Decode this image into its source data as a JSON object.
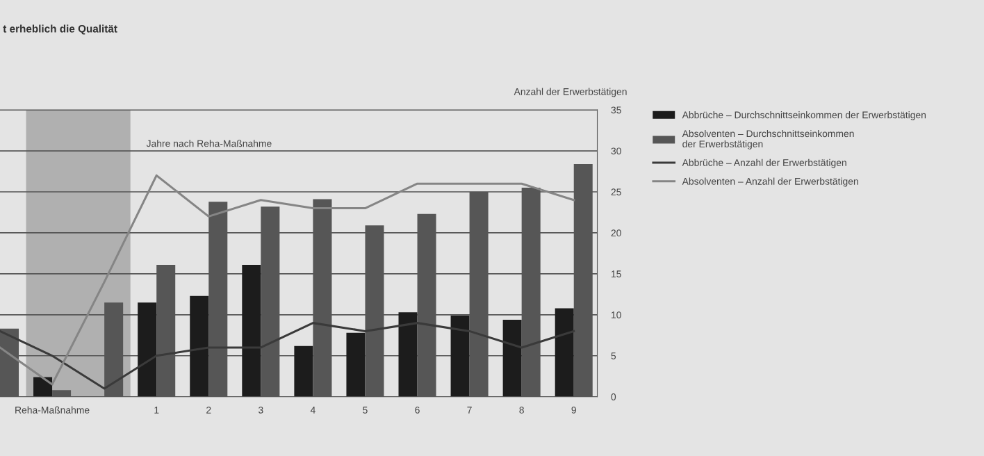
{
  "chart_data": {
    "type": "bar",
    "title": "t erheblich die Qualität",
    "ylabel": "Anzahl der Erwerbstätigen",
    "categories": [
      null,
      "Reha-Maßnahme",
      null,
      "1",
      "2",
      "3",
      "4",
      "5",
      "6",
      "7",
      "8",
      "9"
    ],
    "series": [
      {
        "name": "Abbrüche – Durchschnittseinkommen der Erwerbstätigen",
        "color": "#1c1c1c",
        "values": [
          null,
          2.4,
          null,
          11.5,
          12.3,
          16.1,
          6.2,
          7.8,
          10.3,
          9.9,
          9.4,
          10.8
        ]
      },
      {
        "name": "Absolventen – Durchschnittseinkommen der Erwerbstätigen",
        "color": "#565656",
        "values": [
          8.3,
          0.8,
          11.5,
          16.1,
          23.8,
          23.2,
          24.1,
          20.9,
          22.3,
          25.0,
          25.5,
          28.4
        ]
      },
      {
        "name": "Abbrüche – Anzahl der Erwerbstätigen",
        "type": "line",
        "color": "#3a3a3a",
        "values": [
          8,
          5,
          1,
          5,
          6,
          6,
          9,
          8,
          9,
          8,
          6,
          8
        ]
      },
      {
        "name": "Absolventen – Anzahl der Erwerbstätigen",
        "type": "line",
        "color": "#858585",
        "values": [
          6,
          1.5,
          14,
          27,
          22,
          24,
          23,
          23,
          26,
          26,
          26,
          24
        ]
      }
    ],
    "ylim": [
      0,
      35
    ],
    "yticks": [
      0,
      5,
      10,
      15,
      20,
      25,
      30,
      35
    ],
    "grid": "y",
    "legend": "right",
    "annotations": [
      "Jahre nach Reha-Maßnahme"
    ]
  }
}
